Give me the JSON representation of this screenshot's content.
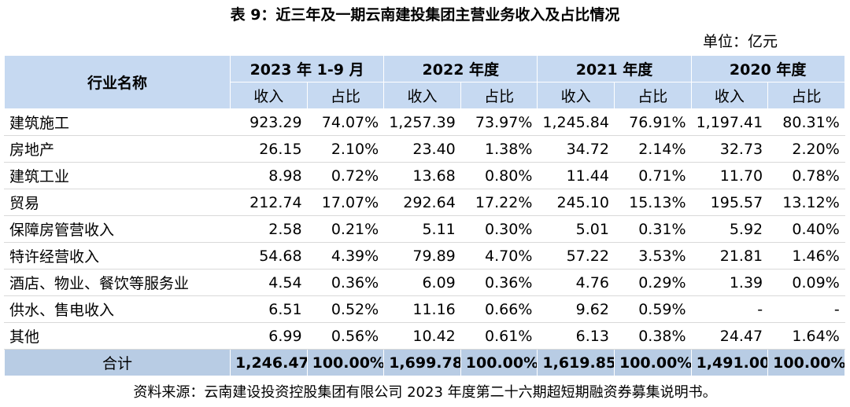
{
  "title": "表 9：近三年及一期云南建投集团主营业务收入及占比情况",
  "unit": "单位：亿元",
  "table": {
    "corner": "行业名称",
    "periods": [
      "2023 年 1-9 月",
      "2022 年度",
      "2021 年度",
      "2020 年度"
    ],
    "subheaders": [
      "收入",
      "占比"
    ],
    "rows": [
      [
        "建筑施工",
        "923.29",
        "74.07%",
        "1,257.39",
        "73.97%",
        "1,245.84",
        "76.91%",
        "1,197.41",
        "80.31%"
      ],
      [
        "房地产",
        "26.15",
        "2.10%",
        "23.40",
        "1.38%",
        "34.72",
        "2.14%",
        "32.73",
        "2.20%"
      ],
      [
        "建筑工业",
        "8.98",
        "0.72%",
        "13.68",
        "0.80%",
        "11.44",
        "0.71%",
        "11.70",
        "0.78%"
      ],
      [
        "贸易",
        "212.74",
        "17.07%",
        "292.64",
        "17.22%",
        "245.10",
        "15.13%",
        "195.57",
        "13.12%"
      ],
      [
        "保障房管营收入",
        "2.58",
        "0.21%",
        "5.11",
        "0.30%",
        "5.01",
        "0.31%",
        "5.92",
        "0.40%"
      ],
      [
        "特许经营收入",
        "54.68",
        "4.39%",
        "79.89",
        "4.70%",
        "57.22",
        "3.53%",
        "21.81",
        "1.46%"
      ],
      [
        "酒店、物业、餐饮等服务业",
        "4.54",
        "0.36%",
        "6.09",
        "0.36%",
        "4.76",
        "0.29%",
        "1.39",
        "0.09%"
      ],
      [
        "供水、售电收入",
        "6.51",
        "0.52%",
        "11.16",
        "0.66%",
        "9.62",
        "0.59%",
        "-",
        "-"
      ],
      [
        "其他",
        "6.99",
        "0.56%",
        "10.42",
        "0.61%",
        "6.13",
        "0.38%",
        "24.47",
        "1.64%"
      ]
    ],
    "total": [
      "合计",
      "1,246.47",
      "100.00%",
      "1,699.78",
      "100.00%",
      "1,619.85",
      "100.00%",
      "1,491.00",
      "100.00%"
    ]
  },
  "source": "资料来源：云南建设投资控股集团有限公司 2023 年度第二十六期超短期融资券募集说明书。"
}
